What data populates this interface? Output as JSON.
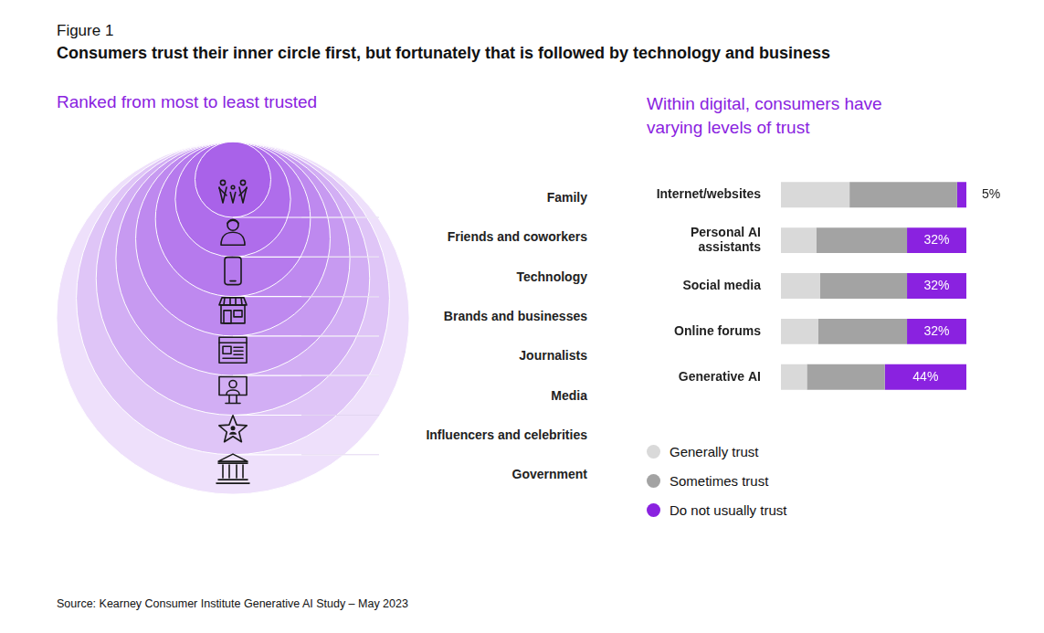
{
  "header": {
    "figure": "Figure 1",
    "title": "Consumers trust their inner circle first, but fortunately that is followed by technology and business"
  },
  "ranking": {
    "heading": "Ranked from most to least trusted",
    "items": [
      "Family",
      "Friends and coworkers",
      "Technology",
      "Brands and businesses",
      "Journalists",
      "Media",
      "Influencers and celebrities",
      "Government"
    ]
  },
  "chart_data": {
    "type": "bar",
    "title": "Within digital, consumers have varying levels of trust",
    "orientation": "horizontal",
    "stacked": true,
    "categories": [
      "Internet/websites",
      "Personal AI assistants",
      "Social media",
      "Online forums",
      "Generative AI"
    ],
    "series": [
      {
        "name": "Generally trust",
        "color": "#d9d9d9",
        "values": [
          37,
          19,
          21,
          20,
          14
        ]
      },
      {
        "name": "Sometimes trust",
        "color": "#a3a3a3",
        "values": [
          58,
          49,
          47,
          48,
          42
        ]
      },
      {
        "name": "Do not usually trust",
        "color": "#8a22e0",
        "values": [
          5,
          32,
          32,
          32,
          44
        ],
        "value_labels": [
          "5%",
          "32%",
          "32%",
          "32%",
          "44%"
        ],
        "data_labels": true
      }
    ],
    "xlim": [
      0,
      100
    ],
    "grid": false,
    "tick_labels": "y",
    "legend": "bottom"
  },
  "source": "Source: Kearney Consumer Institute Generative AI Study – May 2023"
}
